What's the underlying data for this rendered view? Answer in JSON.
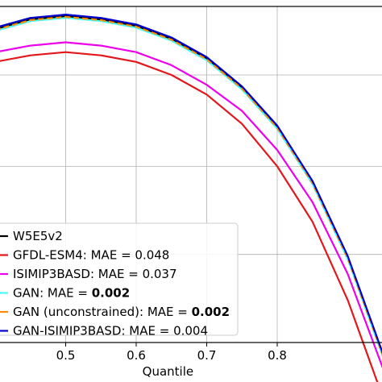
{
  "chart_data": {
    "type": "line",
    "xlabel": "Quantile",
    "ylabel": "",
    "title": "",
    "xlim": [
      0.4,
      0.96
    ],
    "ylim": [
      0.0,
      1.03
    ],
    "x_ticks": [
      0.5,
      0.6,
      0.7,
      0.8
    ],
    "x_tick_labels": [
      "0.5",
      "0.6",
      "0.7",
      "0.8"
    ],
    "grid": true,
    "legend_position": "bottom-left",
    "x": [
      0.4,
      0.45,
      0.5,
      0.55,
      0.6,
      0.65,
      0.7,
      0.75,
      0.8,
      0.85,
      0.9,
      0.95
    ],
    "series": [
      {
        "name": "W5E5v2",
        "color": "#000000",
        "dash": "solid",
        "values": [
          0.96,
          0.99,
          1.0,
          0.99,
          0.97,
          0.93,
          0.87,
          0.78,
          0.66,
          0.49,
          0.26,
          -0.04
        ]
      },
      {
        "name": "GFDL-ESM4",
        "mae_label": "MAE = ",
        "mae_value": "0.048",
        "mae_bold": false,
        "color": "#e3171b",
        "dash": "solid",
        "values": [
          0.86,
          0.88,
          0.89,
          0.88,
          0.86,
          0.82,
          0.76,
          0.67,
          0.54,
          0.37,
          0.13,
          -0.17
        ]
      },
      {
        "name": "ISIMIP3BASD",
        "mae_label": "MAE = ",
        "mae_value": "0.037",
        "mae_bold": false,
        "color": "#ee00ee",
        "dash": "solid",
        "values": [
          0.89,
          0.91,
          0.92,
          0.91,
          0.89,
          0.85,
          0.79,
          0.71,
          0.59,
          0.43,
          0.21,
          -0.08
        ]
      },
      {
        "name": "GAN",
        "mae_label": "MAE = ",
        "mae_value": "0.002",
        "mae_bold": true,
        "color": "#44ffff",
        "dash": "solid",
        "values": [
          0.955,
          0.985,
          0.995,
          0.985,
          0.965,
          0.925,
          0.865,
          0.775,
          0.655,
          0.485,
          0.255,
          -0.045
        ]
      },
      {
        "name": "GAN (unconstrained)",
        "mae_label": "MAE = ",
        "mae_value": "0.002",
        "mae_bold": true,
        "color": "#ff8c00",
        "dash": "dashed",
        "values": [
          0.958,
          0.988,
          0.998,
          0.988,
          0.968,
          0.928,
          0.868,
          0.778,
          0.658,
          0.488,
          0.258,
          -0.042
        ]
      },
      {
        "name": "GAN-ISIMIP3BASD",
        "mae_label": "MAE = ",
        "mae_value": "0.004",
        "mae_bold": false,
        "color": "#0000cc",
        "dash": "solid",
        "values": [
          0.965,
          0.995,
          1.005,
          0.995,
          0.975,
          0.935,
          0.875,
          0.785,
          0.665,
          0.495,
          0.265,
          -0.035
        ]
      }
    ]
  }
}
